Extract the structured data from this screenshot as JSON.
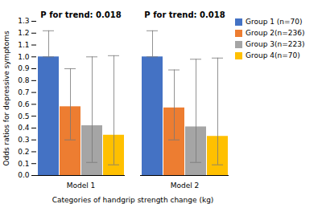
{
  "chart_data": {
    "type": "bar",
    "xlabel": "Categories of handgrip strength change (kg)",
    "ylabel": "Odds ratios for depressive symptoms",
    "categories": [
      "Model 1",
      "Model 2"
    ],
    "series": [
      {
        "name": "Group 1 (n=70)",
        "color": "#4472C4",
        "values": [
          1.0,
          1.0
        ],
        "errors_low": [
          0.0,
          0.0
        ],
        "errors_high": [
          0.22,
          0.22
        ]
      },
      {
        "name": "Group 2(n=236)",
        "color": "#ED7D31",
        "values": [
          0.58,
          0.57
        ],
        "errors_low": [
          0.28,
          0.27
        ],
        "errors_high": [
          0.32,
          0.32
        ]
      },
      {
        "name": "Group 3(n=223)",
        "color": "#A5A5A5",
        "values": [
          0.42,
          0.41
        ],
        "errors_low": [
          0.31,
          0.3
        ],
        "errors_high": [
          0.58,
          0.57
        ]
      },
      {
        "name": "Group 4(n=70)",
        "color": "#FFC000",
        "values": [
          0.34,
          0.33
        ],
        "errors_low": [
          0.25,
          0.24
        ],
        "errors_high": [
          0.67,
          0.66
        ]
      }
    ],
    "annotations": [
      {
        "text": "P for trend: 0.018",
        "category": "Model 1"
      },
      {
        "text": "P for trend: 0.018",
        "category": "Model 2"
      }
    ],
    "ylim": [
      0,
      1.3
    ],
    "yticks": [
      {
        "value": 0,
        "label": "0.0"
      },
      0.1,
      0.2,
      0.3,
      0.4,
      0.5,
      0.6,
      0.7,
      0.8,
      0.9,
      {
        "value": 1.0,
        "label": "1.0"
      },
      1.1,
      1.2,
      1.3
    ],
    "legend": "upper right"
  }
}
